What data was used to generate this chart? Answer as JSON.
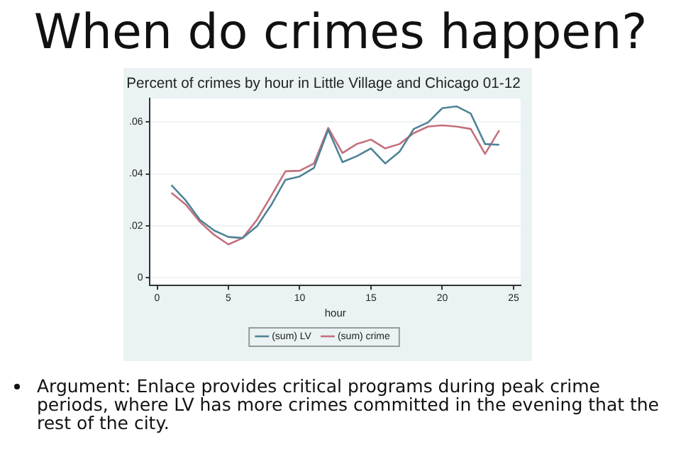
{
  "chart_data": {
    "type": "line",
    "title": "When do crimes happen?",
    "subtitle": "Percent of crimes by hour in Little Village and Chicago 01-12",
    "xlabel": "hour",
    "x": [
      1,
      2,
      3,
      4,
      5,
      6,
      7,
      8,
      9,
      10,
      11,
      12,
      13,
      14,
      15,
      16,
      17,
      18,
      19,
      20,
      21,
      22,
      23,
      24
    ],
    "series": [
      {
        "name": "(sum) LV",
        "color": "#4e8396",
        "values": [
          0.0357,
          0.0298,
          0.0223,
          0.0182,
          0.0157,
          0.0153,
          0.0198,
          0.028,
          0.0377,
          0.039,
          0.0423,
          0.057,
          0.0445,
          0.0468,
          0.0498,
          0.044,
          0.0485,
          0.0573,
          0.0598,
          0.0653,
          0.066,
          0.0632,
          0.0515,
          0.0512
        ]
      },
      {
        "name": "(sum) crime",
        "color": "#c4707c",
        "values": [
          0.0327,
          0.0282,
          0.0215,
          0.0165,
          0.0128,
          0.0153,
          0.0223,
          0.0315,
          0.041,
          0.0412,
          0.044,
          0.0577,
          0.048,
          0.0515,
          0.0532,
          0.0498,
          0.0515,
          0.0557,
          0.0582,
          0.0587,
          0.0582,
          0.0573,
          0.0477,
          0.0568
        ]
      }
    ],
    "xlim": [
      -0.5,
      25.5
    ],
    "xticks": [
      0,
      5,
      10,
      15,
      20,
      25
    ],
    "ylim": [
      -0.003,
      0.069
    ],
    "yticks": [
      0,
      {
        "value": 0.02,
        "label": ".02"
      },
      {
        "value": 0.04,
        "label": ".04"
      },
      {
        "value": 0.06,
        "label": ".06"
      }
    ],
    "grid": "y",
    "legend": "bottom",
    "marker": "none",
    "line_style": "solid",
    "annotations": [
      "Argument: Enlace provides critical programs during peak crime periods, where LV has more crimes committed in the evening that the rest of the city."
    ]
  }
}
